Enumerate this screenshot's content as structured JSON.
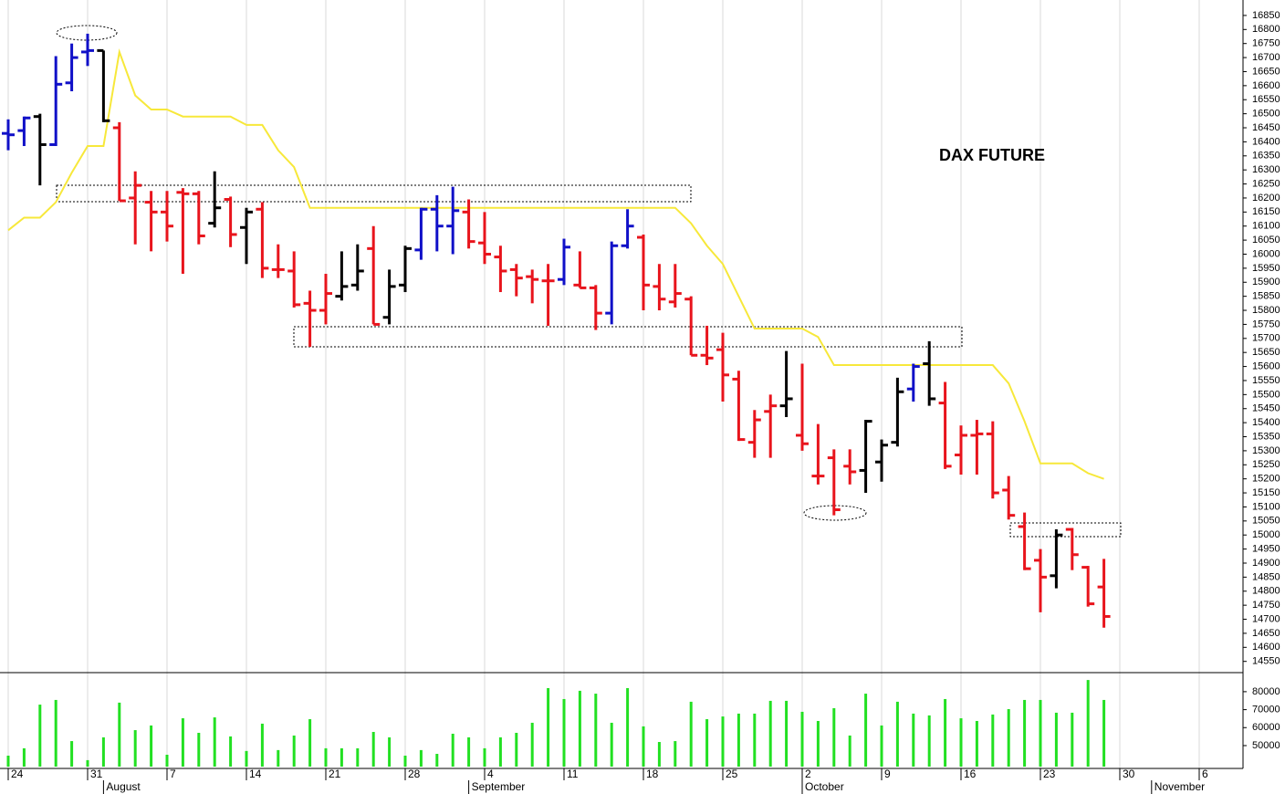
{
  "chart_data": {
    "type": "ohlc",
    "title": "DAX FUTURE",
    "categories": [
      "24",
      null,
      null,
      null,
      null,
      "31",
      null,
      null,
      null,
      null,
      "7",
      null,
      null,
      null,
      null,
      "14",
      null,
      null,
      null,
      null,
      "21",
      null,
      null,
      null,
      null,
      "28",
      null,
      null,
      null,
      null,
      "4",
      null,
      null,
      null,
      null,
      "11",
      null,
      null,
      null,
      null,
      "18",
      null,
      null,
      null,
      null,
      "25",
      null,
      null,
      null,
      null,
      "2",
      null,
      null,
      null,
      null,
      "9",
      null,
      null,
      null,
      null,
      "16",
      null,
      null,
      null,
      null,
      "23",
      null,
      null,
      null,
      null,
      "30",
      null,
      null,
      null,
      null,
      "6",
      null,
      null
    ],
    "months": [
      null,
      null,
      null,
      null,
      null,
      null,
      "August",
      null,
      null,
      null,
      null,
      null,
      null,
      null,
      null,
      null,
      null,
      null,
      null,
      null,
      null,
      null,
      null,
      null,
      null,
      null,
      null,
      null,
      null,
      "September",
      null,
      null,
      null,
      null,
      null,
      null,
      null,
      null,
      null,
      null,
      null,
      null,
      null,
      null,
      null,
      null,
      null,
      null,
      null,
      null,
      "October",
      null,
      null,
      null,
      null,
      null,
      null,
      null,
      null,
      null,
      null,
      null,
      null,
      null,
      null,
      null,
      null,
      null,
      null,
      null,
      null,
      null,
      "November",
      null,
      null,
      null,
      null,
      null
    ],
    "open": [
      16430,
      16440,
      16490,
      16390,
      16610,
      16720,
      16725,
      16450,
      16200,
      16185,
      16150,
      16220,
      16215,
      16110,
      16195,
      16095,
      16160,
      15945,
      15940,
      15825,
      15800,
      15850,
      15890,
      16020,
      15775,
      15890,
      16015,
      16160,
      16100,
      16150,
      16040,
      15990,
      15945,
      15920,
      15905,
      15910,
      15890,
      15880,
      15790,
      16030,
      16060,
      15885,
      15830,
      15840,
      15640,
      15660,
      15555,
      15330,
      15440,
      15460,
      15355,
      15210,
      15275,
      15245,
      15230,
      15260,
      15330,
      15520,
      15610,
      15470,
      15285,
      15355,
      15360,
      15160,
      15030,
      14910,
      14855,
      15020,
      14885,
      14815,
      null,
      null,
      null,
      null,
      null,
      null,
      null,
      null
    ],
    "high": [
      16480,
      16490,
      16500,
      16705,
      16750,
      16785,
      16725,
      16470,
      16295,
      16225,
      16225,
      16235,
      16225,
      16295,
      16205,
      16165,
      16185,
      16035,
      16010,
      15870,
      15930,
      16010,
      16035,
      16100,
      15945,
      16030,
      16165,
      16210,
      16240,
      16195,
      16150,
      16030,
      15965,
      15945,
      15965,
      16055,
      16010,
      15890,
      16045,
      16160,
      16070,
      15965,
      15965,
      15850,
      15745,
      15720,
      15585,
      15445,
      15500,
      15655,
      15610,
      15395,
      15305,
      15305,
      15410,
      15340,
      15560,
      15610,
      15690,
      15545,
      15390,
      15410,
      15405,
      15210,
      15080,
      14950,
      15020,
      15025,
      14890,
      14915,
      null,
      null,
      null,
      null,
      null,
      null,
      null,
      null
    ],
    "low": [
      16370,
      16385,
      16245,
      16385,
      16580,
      16670,
      16470,
      16190,
      16035,
      16010,
      16045,
      15930,
      16035,
      16095,
      16025,
      15965,
      15915,
      15915,
      15810,
      15670,
      15750,
      15835,
      15870,
      15750,
      15750,
      15865,
      15980,
      16010,
      16000,
      16020,
      15965,
      15865,
      15850,
      15825,
      15745,
      15890,
      15880,
      15730,
      15750,
      16020,
      15800,
      15800,
      15810,
      15640,
      15605,
      15475,
      15335,
      15275,
      15275,
      15420,
      15300,
      15180,
      15070,
      15180,
      15150,
      15190,
      15315,
      15475,
      15460,
      15235,
      15215,
      15215,
      15130,
      15055,
      14875,
      14725,
      14810,
      14875,
      14745,
      14670,
      null,
      null,
      null,
      null,
      null,
      null,
      null,
      null
    ],
    "close": [
      16425,
      16485,
      16390,
      16605,
      16700,
      16725,
      16475,
      16190,
      16245,
      16150,
      16100,
      16215,
      16065,
      16165,
      16070,
      16150,
      15950,
      15945,
      15820,
      15800,
      15860,
      15885,
      15940,
      15750,
      15885,
      16020,
      16160,
      16100,
      16155,
      16045,
      16000,
      15940,
      15915,
      15910,
      15905,
      16025,
      15880,
      15790,
      16030,
      16100,
      15890,
      15840,
      15860,
      15640,
      15630,
      15570,
      15340,
      15410,
      15460,
      15485,
      15325,
      15210,
      15090,
      15225,
      15405,
      15320,
      15510,
      15600,
      15485,
      15245,
      15355,
      15360,
      15150,
      15070,
      14880,
      14850,
      15000,
      14930,
      14755,
      14710,
      null,
      null,
      null,
      null,
      null,
      null,
      null,
      null
    ],
    "bar_colors": [
      "#1010c8",
      "#1010c8",
      "#000000",
      "#1010c8",
      "#1010c8",
      "#1010c8",
      "#000000",
      "#e8141c",
      "#e8141c",
      "#e8141c",
      "#e8141c",
      "#e8141c",
      "#e8141c",
      "#000000",
      "#e8141c",
      "#000000",
      "#e8141c",
      "#e8141c",
      "#e8141c",
      "#e8141c",
      "#e8141c",
      "#000000",
      "#000000",
      "#e8141c",
      "#000000",
      "#000000",
      "#1010c8",
      "#1010c8",
      "#1010c8",
      "#e8141c",
      "#e8141c",
      "#e8141c",
      "#e8141c",
      "#e8141c",
      "#e8141c",
      "#1010c8",
      "#e8141c",
      "#e8141c",
      "#1010c8",
      "#1010c8",
      "#e8141c",
      "#e8141c",
      "#e8141c",
      "#e8141c",
      "#e8141c",
      "#e8141c",
      "#e8141c",
      "#e8141c",
      "#e8141c",
      "#000000",
      "#e8141c",
      "#e8141c",
      "#e8141c",
      "#e8141c",
      "#000000",
      "#000000",
      "#000000",
      "#1010c8",
      "#000000",
      "#e8141c",
      "#e8141c",
      "#e8141c",
      "#e8141c",
      "#e8141c",
      "#e8141c",
      "#e8141c",
      "#000000",
      "#e8141c",
      "#e8141c",
      "#e8141c",
      null,
      null,
      null,
      null,
      null,
      null,
      null,
      null
    ],
    "overlay_values": [
      16085,
      16130,
      16130,
      16185,
      16290,
      16385,
      16385,
      16720,
      16565,
      16515,
      16515,
      16490,
      16490,
      16490,
      16490,
      16460,
      16460,
      16370,
      16310,
      16165,
      16165,
      16165,
      16165,
      16165,
      16165,
      16165,
      16165,
      16165,
      16165,
      16165,
      16165,
      16165,
      16165,
      16165,
      16165,
      16165,
      16165,
      16165,
      16165,
      16165,
      16165,
      16165,
      16165,
      16110,
      16030,
      15965,
      15850,
      15735,
      15735,
      15735,
      15735,
      15705,
      15605,
      15605,
      15605,
      15605,
      15605,
      15605,
      15605,
      15605,
      15605,
      15605,
      15605,
      15540,
      15405,
      15255,
      15255,
      15255,
      15220,
      15200,
      null,
      null,
      null,
      null,
      null,
      null,
      null,
      null
    ],
    "overlay_color": "#f7e83a",
    "ylim": [
      14510,
      16905
    ],
    "yticks": [
      14550,
      14600,
      14650,
      14700,
      14750,
      14800,
      14850,
      14900,
      14950,
      15000,
      15050,
      15100,
      15150,
      15200,
      15250,
      15300,
      15350,
      15400,
      15450,
      15500,
      15550,
      15600,
      15650,
      15700,
      15750,
      15800,
      15850,
      15900,
      15950,
      16000,
      16050,
      16100,
      16150,
      16200,
      16250,
      16300,
      16350,
      16400,
      16450,
      16500,
      16550,
      16600,
      16650,
      16700,
      16750,
      16800,
      16850
    ],
    "volume": {
      "values": [
        44400,
        48500,
        72800,
        75400,
        52500,
        41900,
        54600,
        73900,
        58600,
        61200,
        44900,
        65200,
        57100,
        65700,
        55100,
        47000,
        62200,
        47500,
        55600,
        64700,
        48500,
        48500,
        48500,
        57600,
        54600,
        44400,
        47500,
        45400,
        56600,
        54600,
        48500,
        54600,
        57100,
        62700,
        82000,
        75900,
        80500,
        78900,
        62700,
        82000,
        60700,
        52000,
        52500,
        74400,
        64700,
        66200,
        67800,
        67800,
        74900,
        74900,
        68800,
        63700,
        70800,
        55600,
        78900,
        61200,
        74400,
        67800,
        66800,
        75900,
        65200,
        63700,
        67300,
        70300,
        75400,
        75400,
        68300,
        68300,
        86500,
        75400,
        null,
        null,
        null,
        null,
        null,
        null,
        null,
        null
      ],
      "color": "#22e022",
      "ylim": [
        38300,
        90100
      ],
      "yticks": [
        50000,
        60000,
        70000,
        80000
      ]
    }
  }
}
